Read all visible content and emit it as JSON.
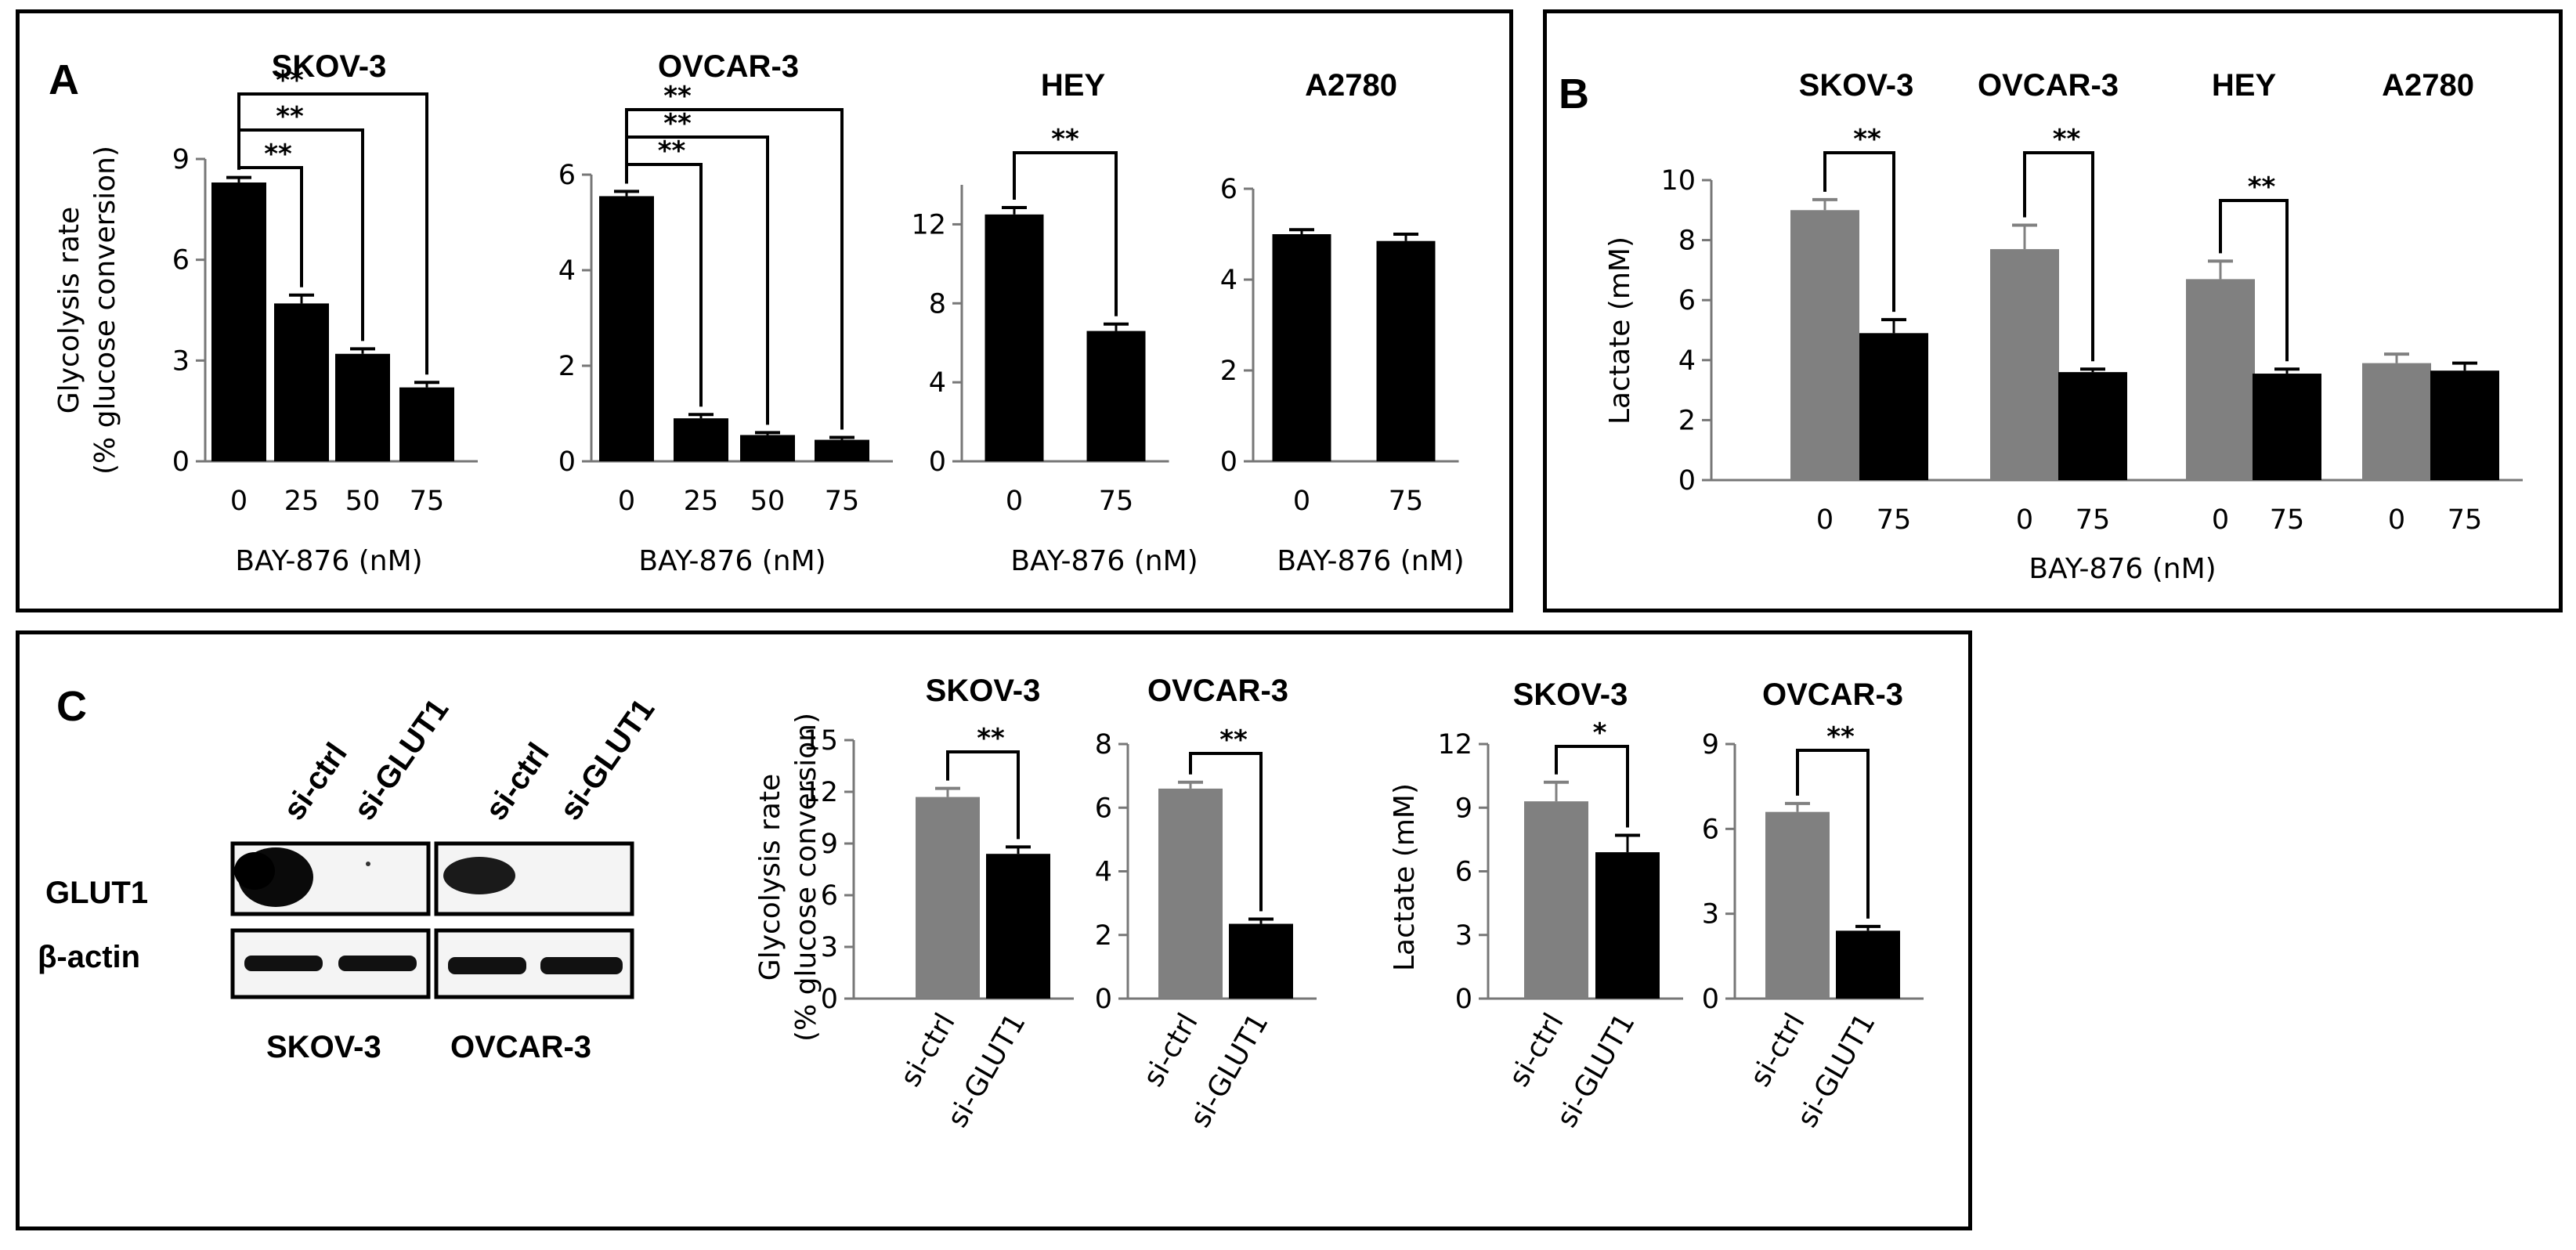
{
  "panels": {
    "a": "A",
    "b": "B",
    "c": "C"
  },
  "blot": {
    "lane_labels": [
      "si-ctrl",
      "si-GLUT1",
      "si-ctrl",
      "si-GLUT1"
    ],
    "row_labels": [
      "GLUT1",
      "β-actin"
    ],
    "cell_lines": [
      "SKOV-3",
      "OVCAR-3"
    ]
  },
  "chart_data": [
    {
      "id": "a1",
      "type": "bar",
      "title": "SKOV-3",
      "ylabel": "Glycolysis rate",
      "ylabel2": "(% glucose conversion)",
      "xlabel": "BAY-876 (nM)",
      "ylim": [
        0,
        9
      ],
      "yticks": [
        "0",
        "3",
        "6",
        "9"
      ],
      "categories": [
        "0",
        "25",
        "50",
        "75"
      ],
      "values": [
        8.3,
        4.7,
        3.2,
        2.2
      ],
      "errors": [
        0.15,
        0.25,
        0.15,
        0.15
      ],
      "colors": [
        "#000000",
        "#000000",
        "#000000",
        "#000000"
      ],
      "brackets": [
        {
          "from": 0,
          "to": 1,
          "label": "**"
        },
        {
          "from": 0,
          "to": 2,
          "label": "**"
        },
        {
          "from": 0,
          "to": 3,
          "label": "**"
        }
      ]
    },
    {
      "id": "a2",
      "type": "bar",
      "title": "OVCAR-3",
      "xlabel": "BAY-876 (nM)",
      "ylim": [
        0,
        6
      ],
      "yticks": [
        "0",
        "2",
        "4",
        "6"
      ],
      "categories": [
        "0",
        "25",
        "50",
        "75"
      ],
      "values": [
        5.55,
        0.9,
        0.55,
        0.45
      ],
      "errors": [
        0.1,
        0.08,
        0.05,
        0.05
      ],
      "colors": [
        "#000000",
        "#000000",
        "#000000",
        "#000000"
      ],
      "brackets": [
        {
          "from": 0,
          "to": 1,
          "label": "**"
        },
        {
          "from": 0,
          "to": 2,
          "label": "**"
        },
        {
          "from": 0,
          "to": 3,
          "label": "**"
        }
      ]
    },
    {
      "id": "a3",
      "type": "bar",
      "title": "HEY",
      "xlabel": "BAY-876 (nM)",
      "ylim": [
        0,
        14
      ],
      "yticks": [
        "0",
        "4",
        "8",
        "12"
      ],
      "categories": [
        "0",
        "75"
      ],
      "values": [
        12.5,
        6.6
      ],
      "errors": [
        0.35,
        0.35
      ],
      "colors": [
        "#000000",
        "#000000"
      ],
      "brackets": [
        {
          "from": 0,
          "to": 1,
          "label": "**"
        }
      ]
    },
    {
      "id": "a4",
      "type": "bar",
      "title": "A2780",
      "xlabel": "BAY-876 (nM)",
      "ylim": [
        0,
        6
      ],
      "yticks": [
        "0",
        "2",
        "4",
        "6"
      ],
      "categories": [
        "0",
        "75"
      ],
      "values": [
        5.0,
        4.85
      ],
      "errors": [
        0.1,
        0.15
      ],
      "colors": [
        "#000000",
        "#000000"
      ],
      "brackets": []
    },
    {
      "id": "b",
      "type": "bar",
      "ylabel": "Lactate (mM)",
      "xlabel": "BAY-876 (nM)",
      "ylim": [
        0,
        10
      ],
      "yticks": [
        "0",
        "2",
        "4",
        "6",
        "8",
        "10"
      ],
      "group_titles": [
        "SKOV-3",
        "OVCAR-3",
        "HEY",
        "A2780"
      ],
      "categories": [
        "0",
        "75",
        "0",
        "75",
        "0",
        "75",
        "0",
        "75"
      ],
      "values": [
        9.0,
        4.9,
        7.7,
        3.6,
        6.7,
        3.55,
        3.9,
        3.65
      ],
      "errors": [
        0.35,
        0.45,
        0.8,
        0.1,
        0.6,
        0.15,
        0.3,
        0.25
      ],
      "colors": [
        "#808080",
        "#000000",
        "#808080",
        "#000000",
        "#808080",
        "#000000",
        "#808080",
        "#000000"
      ],
      "brackets": [
        {
          "from": 0,
          "to": 1,
          "label": "**"
        },
        {
          "from": 2,
          "to": 3,
          "label": "**"
        },
        {
          "from": 4,
          "to": 5,
          "label": "**"
        }
      ]
    },
    {
      "id": "c1",
      "type": "bar",
      "title": "SKOV-3",
      "ylabel": "Glycolysis rate",
      "ylabel2": "(% glucose conversion)",
      "ylim": [
        0,
        15
      ],
      "yticks": [
        "0",
        "3",
        "6",
        "9",
        "12",
        "15"
      ],
      "categories": [
        "si-ctrl",
        "si-GLUT1"
      ],
      "values": [
        11.7,
        8.4
      ],
      "errors": [
        0.5,
        0.4
      ],
      "colors": [
        "#808080",
        "#000000"
      ],
      "brackets": [
        {
          "from": 0,
          "to": 1,
          "label": "**"
        }
      ]
    },
    {
      "id": "c2",
      "type": "bar",
      "title": "OVCAR-3",
      "ylim": [
        0,
        8
      ],
      "yticks": [
        "0",
        "2",
        "4",
        "6",
        "8"
      ],
      "categories": [
        "si-ctrl",
        "si-GLUT1"
      ],
      "values": [
        6.6,
        2.35
      ],
      "errors": [
        0.2,
        0.15
      ],
      "colors": [
        "#808080",
        "#000000"
      ],
      "brackets": [
        {
          "from": 0,
          "to": 1,
          "label": "**"
        }
      ]
    },
    {
      "id": "c3",
      "type": "bar",
      "title": "SKOV-3",
      "ylabel": "Lactate (mM)",
      "ylim": [
        0,
        12
      ],
      "yticks": [
        "0",
        "3",
        "6",
        "9",
        "12"
      ],
      "categories": [
        "si-ctrl",
        "si-GLUT1"
      ],
      "values": [
        9.3,
        6.9
      ],
      "errors": [
        0.9,
        0.8
      ],
      "colors": [
        "#808080",
        "#000000"
      ],
      "brackets": [
        {
          "from": 0,
          "to": 1,
          "label": "*"
        }
      ]
    },
    {
      "id": "c4",
      "type": "bar",
      "title": "OVCAR-3",
      "ylim": [
        0,
        9
      ],
      "yticks": [
        "0",
        "3",
        "6",
        "9"
      ],
      "categories": [
        "si-ctrl",
        "si-GLUT1"
      ],
      "values": [
        6.6,
        2.4
      ],
      "errors": [
        0.3,
        0.15
      ],
      "colors": [
        "#808080",
        "#000000"
      ],
      "brackets": [
        {
          "from": 0,
          "to": 1,
          "label": "**"
        }
      ]
    }
  ]
}
